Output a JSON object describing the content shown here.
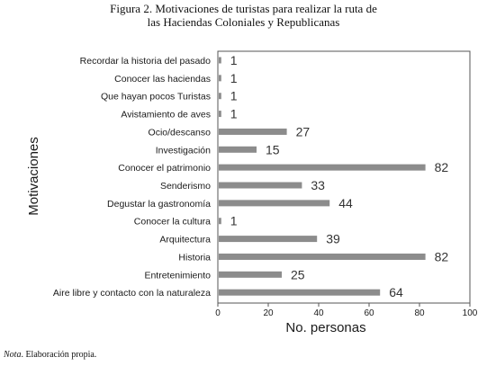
{
  "figure": {
    "title_line1": "Figura 2. Motivaciones de turistas para realizar la ruta de",
    "title_line2": "las Haciendas Coloniales y Republicanas",
    "note_label": "Nota",
    "note_text": ". Elaboración propia."
  },
  "chart_data": {
    "type": "bar",
    "orientation": "horizontal",
    "categories": [
      "Recordar la historia del pasado",
      "Conocer las haciendas",
      "Que hayan pocos Turistas",
      "Avistamiento de aves",
      "Ocio/descanso",
      "Investigación",
      "Conocer el patrimonio",
      "Senderismo",
      "Degustar la gastronomía",
      "Conocer la cultura",
      "Arquitectura",
      "Historia",
      "Entretenimiento",
      "Aire libre y contacto con la naturaleza"
    ],
    "values": [
      1,
      1,
      1,
      1,
      27,
      15,
      82,
      33,
      44,
      1,
      39,
      82,
      25,
      64
    ],
    "xlabel": "No. personas",
    "ylabel": "Motivaciones",
    "xlim": [
      0,
      100
    ],
    "xticks": [
      0,
      20,
      40,
      60,
      80,
      100
    ],
    "bar_color": "#8c8c8c",
    "data_labels": true,
    "grid": false,
    "legend": "none"
  }
}
